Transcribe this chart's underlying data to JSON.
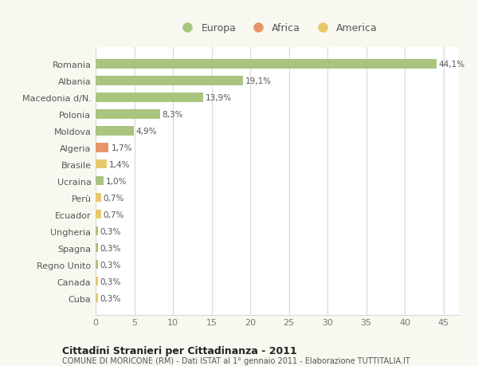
{
  "categories": [
    "Romania",
    "Albania",
    "Macedonia d/N.",
    "Polonia",
    "Moldova",
    "Algeria",
    "Brasile",
    "Ucraina",
    "Perù",
    "Ecuador",
    "Ungheria",
    "Spagna",
    "Regno Unito",
    "Canada",
    "Cuba"
  ],
  "values": [
    44.1,
    19.1,
    13.9,
    8.3,
    4.9,
    1.7,
    1.4,
    1.0,
    0.7,
    0.7,
    0.3,
    0.3,
    0.3,
    0.3,
    0.3
  ],
  "labels": [
    "44,1%",
    "19,1%",
    "13,9%",
    "8,3%",
    "4,9%",
    "1,7%",
    "1,4%",
    "1,0%",
    "0,7%",
    "0,7%",
    "0,3%",
    "0,3%",
    "0,3%",
    "0,3%",
    "0,3%"
  ],
  "continents": [
    "Europa",
    "Europa",
    "Europa",
    "Europa",
    "Europa",
    "Africa",
    "America",
    "Europa",
    "America",
    "America",
    "Europa",
    "Europa",
    "Europa",
    "America",
    "America"
  ],
  "colors": {
    "Europa": "#a8c47f",
    "Africa": "#e8956a",
    "America": "#e8c86a"
  },
  "legend_order": [
    "Europa",
    "Africa",
    "America"
  ],
  "legend_colors": [
    "#a8c47f",
    "#e8956a",
    "#e8c86a"
  ],
  "title": "Cittadini Stranieri per Cittadinanza - 2011",
  "subtitle": "COMUNE DI MORICONE (RM) - Dati ISTAT al 1° gennaio 2011 - Elaborazione TUTTITALIA.IT",
  "xlim": [
    0,
    47
  ],
  "xticks": [
    0,
    5,
    10,
    15,
    20,
    25,
    30,
    35,
    40,
    45
  ],
  "background_color": "#f8f8f0",
  "plot_bg_color": "#ffffff",
  "grid_color": "#d8d8d8"
}
